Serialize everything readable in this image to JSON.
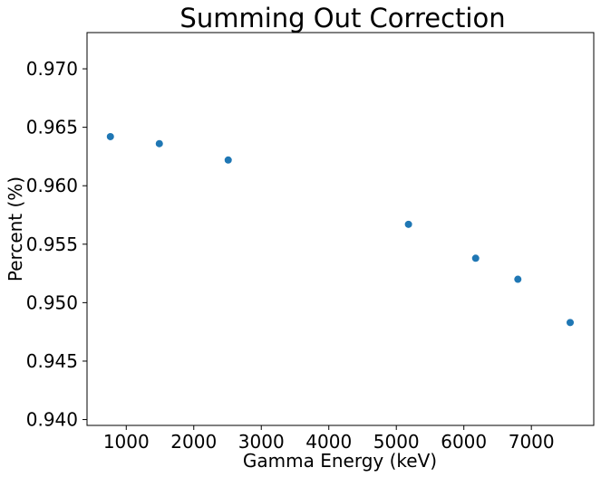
{
  "chart_data": {
    "type": "scatter",
    "title": "Summing Out Correction",
    "xlabel": "Gamma Energy (keV)",
    "ylabel": "Percent (%)",
    "xlim": [
      419,
      7924
    ],
    "ylim": [
      0.9395,
      0.9731
    ],
    "xticks": [
      1000,
      2000,
      3000,
      4000,
      5000,
      6000,
      7000
    ],
    "xtick_labels": [
      "1000",
      "2000",
      "3000",
      "4000",
      "5000",
      "6000",
      "7000"
    ],
    "yticks": [
      0.94,
      0.945,
      0.95,
      0.955,
      0.96,
      0.965,
      0.97
    ],
    "ytick_labels": [
      "0.940",
      "0.945",
      "0.950",
      "0.955",
      "0.960",
      "0.965",
      "0.970"
    ],
    "grid": false,
    "legend": "none",
    "marker_color": "#1f77b4",
    "series": [
      {
        "x": [
          765,
          1490,
          2510,
          5180,
          6175,
          6800,
          7575
        ],
        "y": [
          0.9642,
          0.9636,
          0.9622,
          0.9567,
          0.9538,
          0.952,
          0.9483
        ]
      }
    ]
  }
}
